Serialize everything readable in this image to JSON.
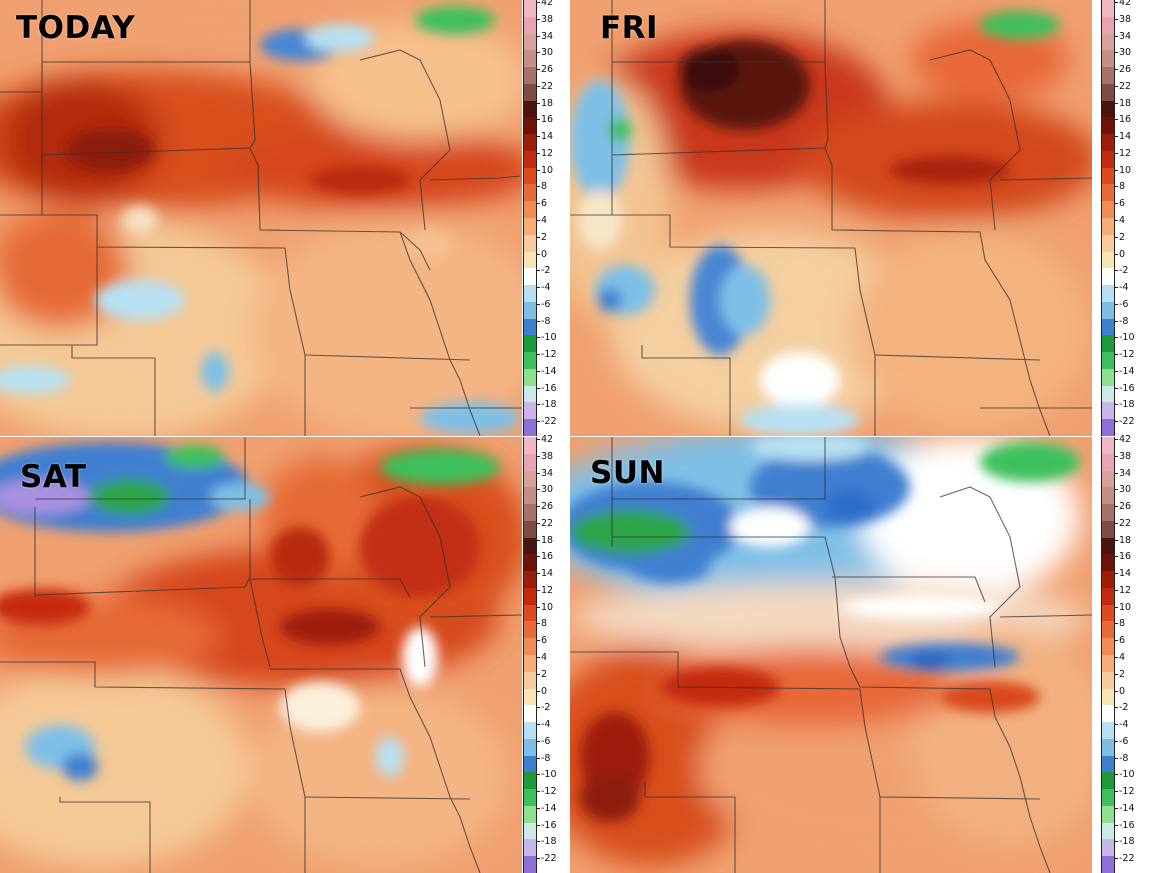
{
  "panels": [
    {
      "id": "today",
      "title": "TODAY"
    },
    {
      "id": "fri",
      "title": "FRI"
    },
    {
      "id": "sat",
      "title": "SAT"
    },
    {
      "id": "sun",
      "title": "SUN"
    }
  ],
  "colorbar": {
    "labels": [
      "42",
      "38",
      "34",
      "30",
      "26",
      "22",
      "18",
      "16",
      "14",
      "12",
      "10",
      "8",
      "6",
      "4",
      "2",
      "0",
      "-2",
      "-4",
      "-6",
      "-8",
      "-10",
      "-12",
      "-14",
      "-16",
      "-18",
      "-22"
    ],
    "colors": [
      "#f2b7c7",
      "#e9a3b4",
      "#d8a19b",
      "#c68f86",
      "#a8716a",
      "#7d4d45",
      "#4a1410",
      "#6e1208",
      "#9e1c0a",
      "#c42a10",
      "#dc4a1e",
      "#ea6a36",
      "#f28c55",
      "#f6ad78",
      "#f8cb9c",
      "#f5e6b4",
      "#ffffff",
      "#b8e0f2",
      "#7fbfe6",
      "#3f7fd0",
      "#1e9a3a",
      "#3cc05c",
      "#8fe08f",
      "#cde9e5",
      "#c8b8ea",
      "#8f70d8"
    ]
  }
}
